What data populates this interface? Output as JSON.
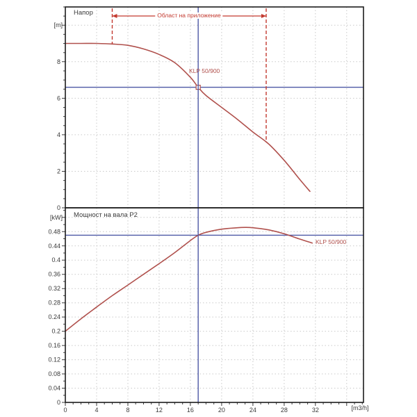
{
  "colors": {
    "curve_red": "#b0504c",
    "annotation_red": "#c3392f",
    "ref_blue": "#4d58a5",
    "grid": "#c9c9c9",
    "frame": "#1c1c1c",
    "text": "#3a3a3a"
  },
  "x_axis": {
    "unit_label": "[m3/h]",
    "labeled_ticks": [
      0,
      4,
      8,
      12,
      16,
      20,
      24,
      28,
      32
    ],
    "major_step": 4,
    "minor_step": 1,
    "max": 38.15
  },
  "chart_data": [
    {
      "type": "line",
      "panel": "head",
      "title": "Напор",
      "unit_label": "[m]",
      "unit_tick_value": 10,
      "y_max": 11,
      "y_labeled_ticks": [
        0,
        2,
        4,
        6,
        8
      ],
      "y_major_step": 2,
      "y_minor_step": 0.5,
      "grid_y": [
        2,
        4,
        6,
        8,
        10
      ],
      "series": [
        {
          "name": "KLP 50/900",
          "x": [
            0,
            2,
            4,
            6,
            8,
            10,
            12,
            14,
            16,
            17,
            18,
            20,
            22,
            24,
            26,
            28,
            30,
            31.3
          ],
          "y": [
            9.0,
            9.0,
            9.0,
            8.97,
            8.9,
            8.7,
            8.4,
            7.95,
            7.15,
            6.6,
            6.15,
            5.5,
            4.85,
            4.15,
            3.5,
            2.6,
            1.55,
            0.9
          ]
        }
      ],
      "duty_point": {
        "x": 17,
        "y": 6.6
      },
      "ref_lines": {
        "vertical_x": 17,
        "horizontal_y": 6.6
      },
      "annotation": {
        "label": "Област на приложение",
        "x_from": 6,
        "x_to": 25.7
      }
    },
    {
      "type": "line",
      "panel": "power",
      "title": "Мощност на вала P2",
      "unit_label": "[kW]",
      "unit_tick_value": 0.52,
      "y_max": 0.547,
      "y_labeled_ticks": [
        0,
        0.04,
        0.08,
        0.12,
        0.16,
        0.2,
        0.24,
        0.28,
        0.32,
        0.36,
        0.4,
        0.44,
        0.48
      ],
      "y_major_step": 0.04,
      "y_minor_step": 0.02,
      "grid_y": [
        0.04,
        0.08,
        0.12,
        0.16,
        0.2,
        0.24,
        0.28,
        0.32,
        0.36,
        0.4,
        0.44,
        0.48,
        0.52
      ],
      "series": [
        {
          "name": "KLP 50/900",
          "x": [
            0,
            2,
            4,
            6,
            8,
            10,
            12,
            14,
            16,
            17,
            18,
            20,
            22,
            23,
            24,
            26,
            28,
            30,
            31.6
          ],
          "y": [
            0.2,
            0.235,
            0.268,
            0.3,
            0.33,
            0.36,
            0.39,
            0.421,
            0.455,
            0.47,
            0.478,
            0.487,
            0.491,
            0.492,
            0.491,
            0.485,
            0.474,
            0.459,
            0.448
          ]
        }
      ],
      "ref_lines": {
        "vertical_x": 17,
        "horizontal_y": 0.47
      }
    }
  ]
}
